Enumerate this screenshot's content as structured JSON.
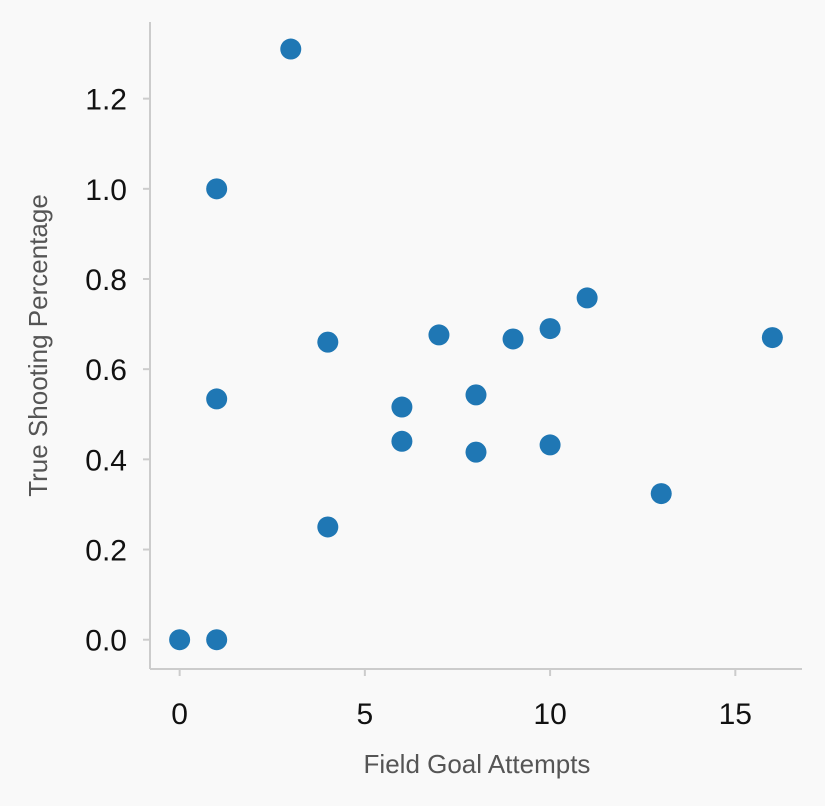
{
  "colors": {
    "background": "#f9f9f9",
    "point": "#1f77b4",
    "axis": "#cccccc"
  },
  "chart_data": {
    "type": "scatter",
    "title": "",
    "xlabel": "Field Goal Attempts",
    "ylabel": "True Shooting Percentage",
    "xlim": [
      -0.8,
      16.8
    ],
    "ylim": [
      -0.065,
      1.37
    ],
    "xticks": [
      0,
      5,
      10,
      15
    ],
    "xtick_labels": [
      "0",
      "5",
      "10",
      "15"
    ],
    "yticks": [
      0.0,
      0.2,
      0.4,
      0.6,
      0.8,
      1.0,
      1.2
    ],
    "ytick_labels": [
      "0.0",
      "0.2",
      "0.4",
      "0.6",
      "0.8",
      "1.0",
      "1.2"
    ],
    "grid": false,
    "series": [
      {
        "points": [
          {
            "x": 0,
            "y": 0.0
          },
          {
            "x": 1,
            "y": 0.0
          },
          {
            "x": 1,
            "y": 0.534
          },
          {
            "x": 1,
            "y": 1.0
          },
          {
            "x": 3,
            "y": 1.31
          },
          {
            "x": 4,
            "y": 0.25
          },
          {
            "x": 4,
            "y": 0.66
          },
          {
            "x": 6,
            "y": 0.44
          },
          {
            "x": 6,
            "y": 0.516
          },
          {
            "x": 7,
            "y": 0.676
          },
          {
            "x": 8,
            "y": 0.416
          },
          {
            "x": 8,
            "y": 0.543
          },
          {
            "x": 9,
            "y": 0.667
          },
          {
            "x": 10,
            "y": 0.432
          },
          {
            "x": 10,
            "y": 0.69
          },
          {
            "x": 11,
            "y": 0.758
          },
          {
            "x": 13,
            "y": 0.324
          },
          {
            "x": 16,
            "y": 0.67
          }
        ]
      }
    ]
  }
}
